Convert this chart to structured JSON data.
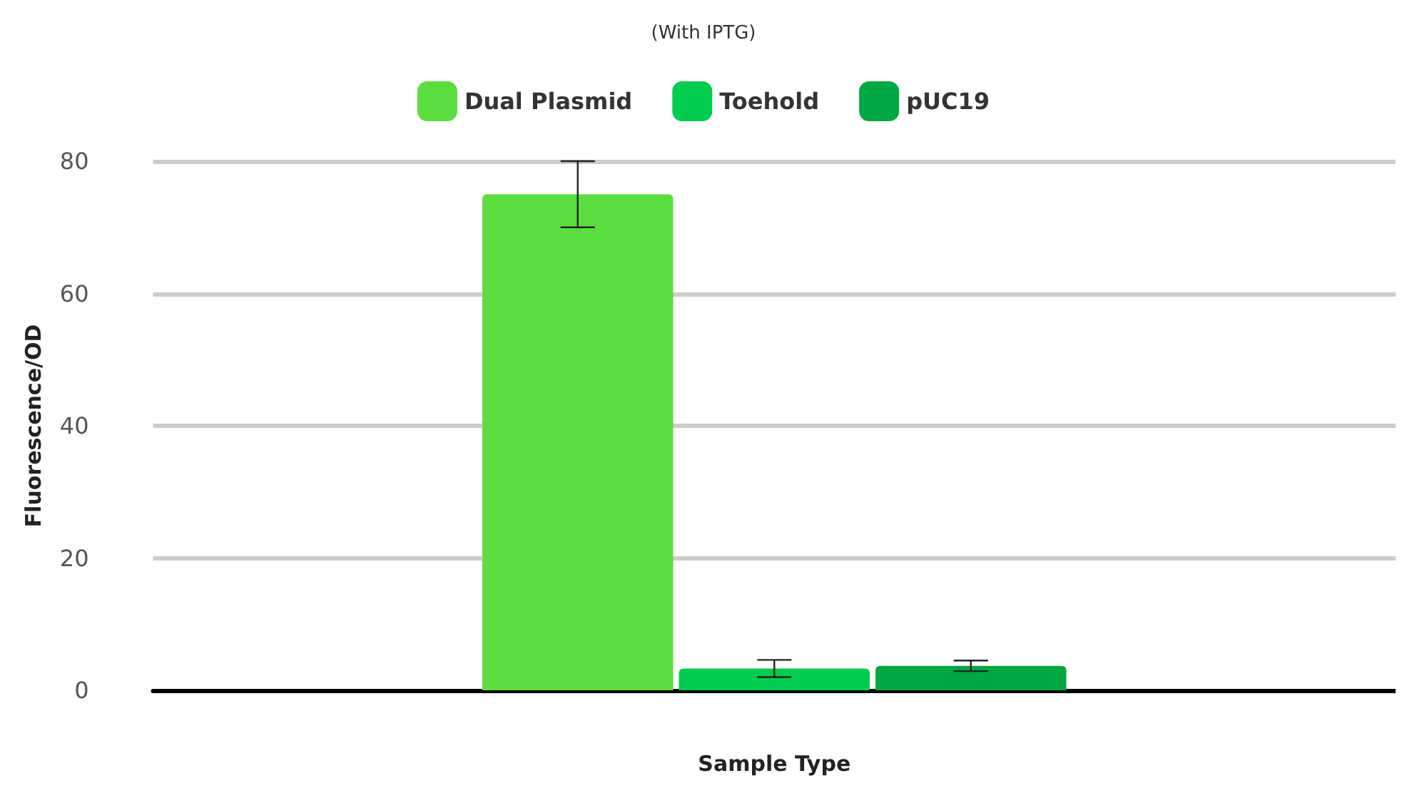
{
  "chart_data": {
    "type": "bar",
    "subtitle": "(With IPTG)",
    "xlabel": "Sample Type",
    "ylabel": "Fluorescence/OD",
    "categories": [
      null
    ],
    "series": [
      {
        "name": "Dual Plasmid",
        "color": "#5ade3e",
        "values": [
          75
        ],
        "errors": [
          5
        ]
      },
      {
        "name": "Toehold",
        "color": "#00cc4f",
        "values": [
          3.3
        ],
        "errors": [
          1.3
        ]
      },
      {
        "name": "pUC19",
        "color": "#00a843",
        "values": [
          3.7
        ],
        "errors": [
          0.8
        ]
      }
    ],
    "ylim": [
      0,
      80
    ],
    "yticks": [
      0,
      20,
      40,
      60,
      80
    ],
    "grid": "y",
    "legend": "top"
  }
}
